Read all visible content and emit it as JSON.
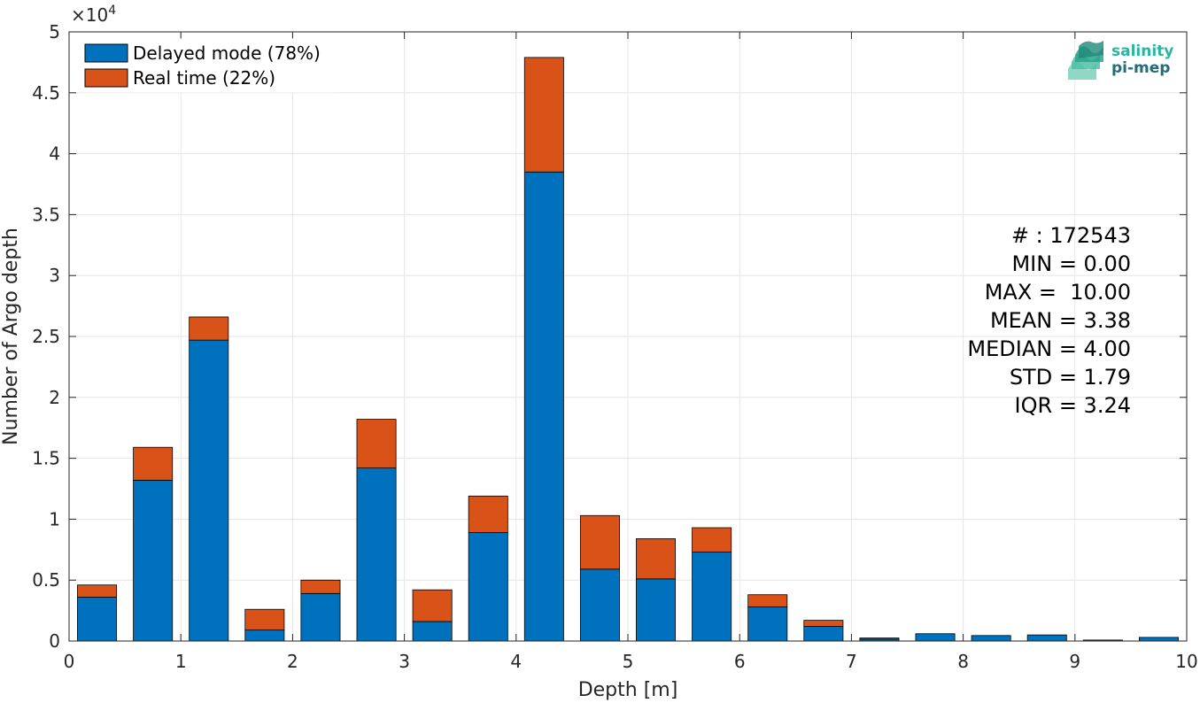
{
  "chart_data": {
    "type": "bar",
    "stacked": true,
    "x": [
      0.25,
      0.75,
      1.25,
      1.75,
      2.25,
      2.75,
      3.25,
      3.75,
      4.25,
      4.75,
      5.25,
      5.75,
      6.25,
      6.75,
      7.25,
      7.75,
      8.25,
      8.75,
      9.25,
      9.75
    ],
    "series": [
      {
        "name": "Delayed mode (78%)",
        "color": "#0072BD",
        "values": [
          3600,
          13200,
          24700,
          900,
          3900,
          14200,
          1600,
          8900,
          38500,
          5900,
          5100,
          7300,
          2800,
          1200,
          150,
          600,
          450,
          500,
          80,
          300
        ]
      },
      {
        "name": "Real time (22%)",
        "color": "#D95319",
        "values": [
          1000,
          2700,
          1900,
          1700,
          1100,
          4000,
          2600,
          3000,
          9400,
          4400,
          3300,
          2000,
          1000,
          500,
          100,
          0,
          0,
          0,
          0,
          0
        ]
      }
    ],
    "xlabel": "Depth [m]",
    "ylabel": "Number of Argo depth",
    "y_exponent_label": "×10",
    "y_exponent": "4",
    "xlim": [
      0,
      10
    ],
    "ylim": [
      0,
      50000
    ],
    "xticks": [
      "0",
      "1",
      "2",
      "3",
      "4",
      "5",
      "6",
      "7",
      "8",
      "9",
      "10"
    ],
    "yticks": [
      "0",
      "0.5",
      "1",
      "1.5",
      "2",
      "2.5",
      "3",
      "3.5",
      "4",
      "4.5",
      "5"
    ],
    "grid": true,
    "legend_position": "top-left",
    "stats": [
      "# : 172543",
      "MIN = 0.00",
      "MAX =  10.00",
      "MEAN = 3.38",
      "MEDIAN = 4.00",
      "STD = 1.79",
      "IQR = 3.24"
    ]
  },
  "logo": {
    "line1": "salinity",
    "line2": "pi-mep",
    "color1": "#2bb5a0",
    "color2": "#1f6e7a"
  }
}
